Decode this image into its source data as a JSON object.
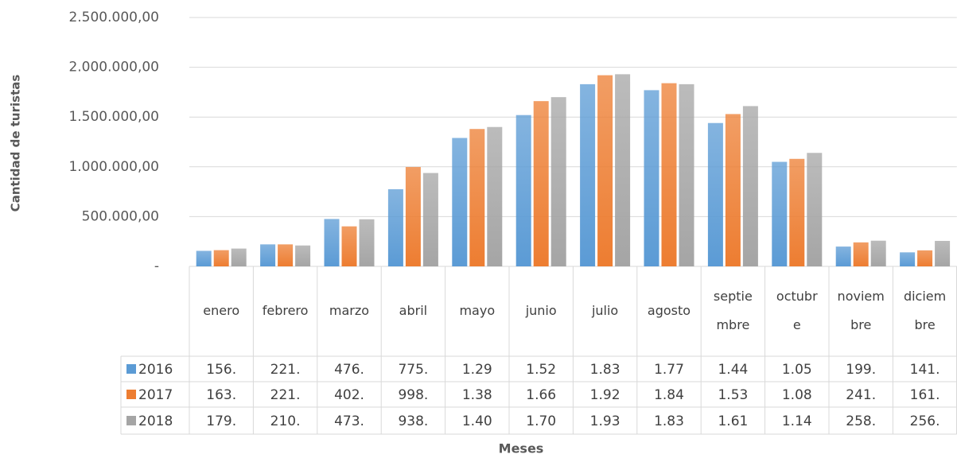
{
  "chart_data": {
    "type": "bar",
    "ylabel": "Cantidad de turistas",
    "xlabel": "Meses",
    "categories": [
      "enero",
      "febrero",
      "marzo",
      "abril",
      "mayo",
      "junio",
      "julio",
      "agosto",
      "septiembre",
      "octubre",
      "noviembre",
      "diciembre"
    ],
    "series": [
      {
        "name": "2016",
        "color": "#5b9bd5",
        "values": [
          156000,
          221000,
          476000,
          775000,
          1290000,
          1520000,
          1830000,
          1770000,
          1440000,
          1050000,
          199000,
          141000
        ],
        "value_labels": [
          "156.",
          "221.",
          "476.",
          "775.",
          "1.29",
          "1.52",
          "1.83",
          "1.77",
          "1.44",
          "1.05",
          "199.",
          "141."
        ]
      },
      {
        "name": "2017",
        "color": "#ed7d31",
        "values": [
          163000,
          221000,
          402000,
          998000,
          1380000,
          1660000,
          1920000,
          1840000,
          1530000,
          1080000,
          241000,
          161000
        ],
        "value_labels": [
          "163.",
          "221.",
          "402.",
          "998.",
          "1.38",
          "1.66",
          "1.92",
          "1.84",
          "1.53",
          "1.08",
          "241.",
          "161."
        ]
      },
      {
        "name": "2018",
        "color": "#a5a5a5",
        "values": [
          179000,
          210000,
          473000,
          938000,
          1400000,
          1700000,
          1930000,
          1830000,
          1610000,
          1140000,
          258000,
          256000
        ],
        "value_labels": [
          "179.",
          "210.",
          "473.",
          "938.",
          "1.40",
          "1.70",
          "1.93",
          "1.83",
          "1.61",
          "1.14",
          "258.",
          "256."
        ]
      }
    ],
    "ylim": [
      0,
      2500000
    ],
    "yticks": [
      {
        "value": 0,
        "label": "-"
      },
      {
        "value": 500000,
        "label": "500.000,00"
      },
      {
        "value": 1000000,
        "label": "1.000.000,00"
      },
      {
        "value": 1500000,
        "label": "1.500.000,00"
      },
      {
        "value": 2000000,
        "label": "2.000.000,00"
      },
      {
        "value": 2500000,
        "label": "2.500.000,00"
      }
    ],
    "grid": true
  }
}
